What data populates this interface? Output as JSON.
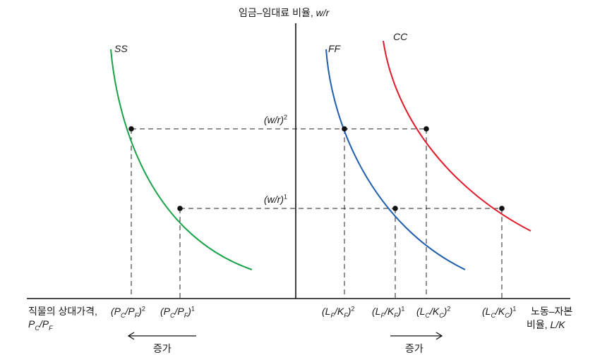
{
  "y_axis_title": {
    "korean": "임금–임대료 비율,",
    "symbol": "w/r"
  },
  "x_axis_title_left": {
    "korean": "직물의 상대가격,",
    "symbol_main": "P",
    "sub1": "C",
    "slash": "/P",
    "sub2": "F"
  },
  "x_axis_title_right": {
    "line1": "노동–자본",
    "line2_korean": "비율,",
    "line2_symbol": "L/K"
  },
  "curves": {
    "ss": "SS",
    "ff": "FF",
    "cc": "CC"
  },
  "colors": {
    "ss": "#1aa34a",
    "ff": "#1f5fad",
    "cc": "#e21b2a",
    "axis": "#111111",
    "dash": "#222222"
  },
  "y_ticks": {
    "wr2": {
      "base": "(w/r)",
      "exp": "2"
    },
    "wr1": {
      "base": "(w/r)",
      "exp": "1"
    }
  },
  "x_ticks_left": {
    "pp2": {
      "a": "(P",
      "sa": "C",
      "b": "/P",
      "sb": "F",
      "c": ")",
      "exp": "2"
    },
    "pp1": {
      "a": "(P",
      "sa": "C",
      "b": "/P",
      "sb": "F",
      "c": ")",
      "exp": "1"
    }
  },
  "x_ticks_right": {
    "lkf2": {
      "a": "(L",
      "sa": "F",
      "b": "/K",
      "sb": "F",
      "c": ")",
      "exp": "2"
    },
    "lkf1": {
      "a": "(L",
      "sa": "F",
      "b": "/K",
      "sb": "F",
      "c": ")",
      "exp": "1"
    },
    "lkc2": {
      "a": "(L",
      "sa": "C",
      "b": "/K",
      "sb": "C",
      "c": ")",
      "exp": "2"
    },
    "lkc1": {
      "a": "(L",
      "sa": "C",
      "b": "/K",
      "sb": "C",
      "c": ")",
      "exp": "1"
    }
  },
  "arrows": {
    "left_label": "증가",
    "right_label": "증가"
  }
}
